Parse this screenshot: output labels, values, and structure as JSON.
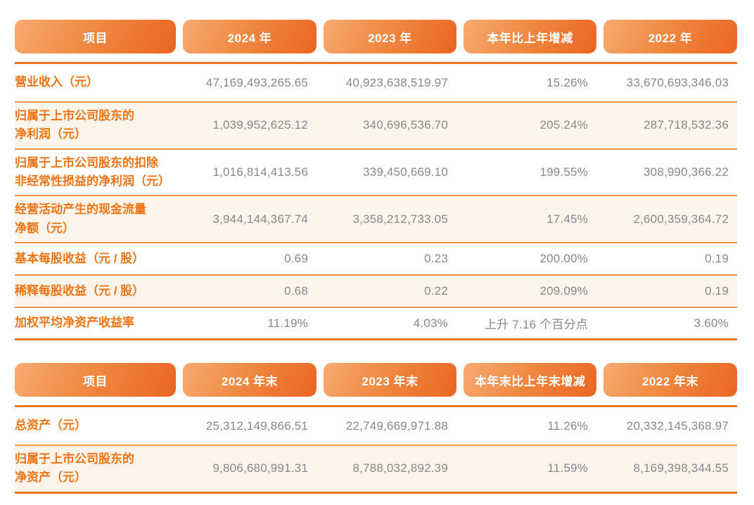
{
  "colors": {
    "pill_gradient_start": "#f7ab74",
    "pill_gradient_end": "#ea6522",
    "header_text": "#ffffff",
    "item_label_text": "#ee7414",
    "value_text": "#86888b",
    "alt_row_background": "#fdf4ec",
    "heavy_rule": "#ec7420",
    "light_rule": "#f0924e"
  },
  "annual_table": {
    "headers": [
      "项目",
      "2024 年",
      "2023 年",
      "本年比上年增减",
      "2022 年"
    ],
    "rows": [
      {
        "item": "营业收入（元）",
        "y2024": "47,169,493,265.65",
        "y2023": "40,923,638,519.97",
        "change": "15.26%",
        "y2022": "33,670,693,346.03"
      },
      {
        "item": "归属于上市公司股东的\n净利润（元）",
        "y2024": "1,039,952,625.12",
        "y2023": "340,696,536.70",
        "change": "205.24%",
        "y2022": "287,718,532.36"
      },
      {
        "item": "归属于上市公司股东的扣除\n非经常性损益的净利润（元）",
        "y2024": "1,016,814,413.56",
        "y2023": "339,450,669.10",
        "change": "199.55%",
        "y2022": "308,990,366.22"
      },
      {
        "item": "经营活动产生的现金流量\n净额（元）",
        "y2024": "3,944,144,367.74",
        "y2023": "3,358,212,733.05",
        "change": "17.45%",
        "y2022": "2,600,359,364.72"
      },
      {
        "item": "基本每股收益（元 / 股）",
        "y2024": "0.69",
        "y2023": "0.23",
        "change": "200.00%",
        "y2022": "0.19"
      },
      {
        "item": "稀释每股收益（元 / 股）",
        "y2024": "0.68",
        "y2023": "0.22",
        "change": "209.09%",
        "y2022": "0.19"
      },
      {
        "item": "加权平均净资产收益率",
        "y2024": "11.19%",
        "y2023": "4.03%",
        "change": "上升 7.16 个百分点",
        "y2022": "3.60%"
      }
    ]
  },
  "period_end_table": {
    "headers": [
      "项目",
      "2024 年末",
      "2023 年末",
      "本年末比上年末增减",
      "2022 年末"
    ],
    "rows": [
      {
        "item": "总资产（元）",
        "y2024": "25,312,149,866.51",
        "y2023": "22,749,669,971.88",
        "change": "11.26%",
        "y2022": "20,332,145,368.97"
      },
      {
        "item": "归属于上市公司股东的\n净资产（元）",
        "y2024": "9,806,680,991.31",
        "y2023": "8,788,032,892.39",
        "change": "11.59%",
        "y2022": "8,169,398,344.55"
      }
    ]
  }
}
